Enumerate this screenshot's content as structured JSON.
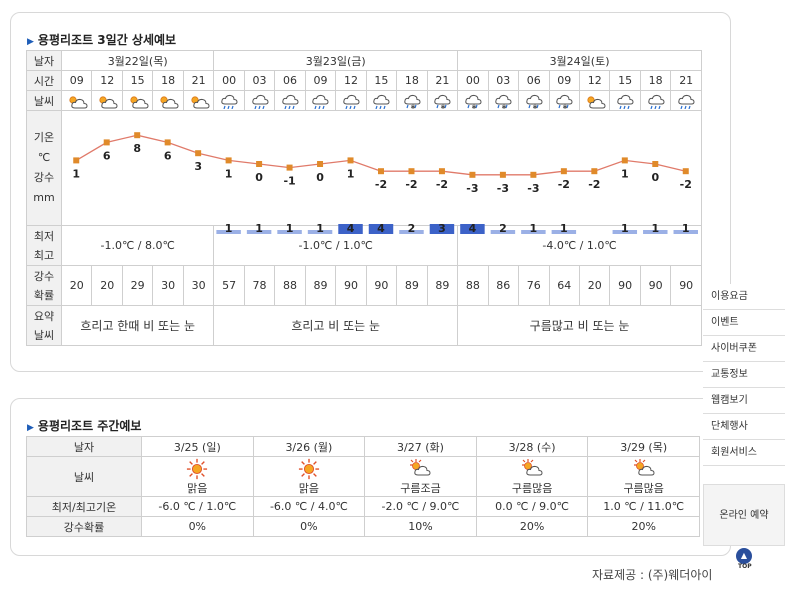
{
  "detail": {
    "title": "용평리조트 3일간 상세예보",
    "row_labels": {
      "date": "날자",
      "time": "시간",
      "weather": "날씨",
      "temp1": "기온",
      "temp2": "℃",
      "rain1": "강수",
      "rain2": "mm",
      "minmax1": "최저",
      "minmax2": "최고",
      "prob1": "강수",
      "prob2": "확률",
      "sum1": "요약",
      "sum2": "날씨"
    },
    "days": [
      {
        "date": "3월22일(목)",
        "minmax": "-1.0℃ / 8.0℃",
        "summary": "흐리고 한때 비 또는 눈"
      },
      {
        "date": "3월23일(금)",
        "minmax": "-1.0℃ / 1.0℃",
        "summary": "흐리고 비 또는 눈"
      },
      {
        "date": "3월24일(토)",
        "minmax": "-4.0℃ / 1.0℃",
        "summary": "구름많고 비 또는 눈"
      }
    ],
    "times": [
      "09",
      "12",
      "15",
      "18",
      "21",
      "00",
      "03",
      "06",
      "09",
      "12",
      "15",
      "18",
      "21",
      "00",
      "03",
      "06",
      "09",
      "12",
      "15",
      "18",
      "21"
    ],
    "weather_icons": [
      "partly-cloudy-icon",
      "partly-cloudy-icon",
      "partly-cloudy-icon",
      "partly-cloudy-icon",
      "partly-cloudy-icon",
      "rain-icon",
      "rain-icon",
      "rain-icon",
      "rain-icon",
      "rain-icon",
      "rain-icon",
      "snow-rain-icon",
      "snow-rain-icon",
      "snow-rain-icon",
      "snow-rain-icon",
      "snow-rain-icon",
      "snow-rain-icon",
      "partly-cloudy-icon",
      "rain-icon",
      "rain-icon",
      "rain-icon"
    ],
    "precip_prob": [
      "20",
      "20",
      "29",
      "30",
      "30",
      "57",
      "78",
      "88",
      "89",
      "90",
      "90",
      "89",
      "89",
      "88",
      "86",
      "76",
      "64",
      "20",
      "90",
      "90",
      "90"
    ]
  },
  "chart_data": {
    "type": "line",
    "x": [
      "09",
      "12",
      "15",
      "18",
      "21",
      "00",
      "03",
      "06",
      "09",
      "12",
      "15",
      "18",
      "21",
      "00",
      "03",
      "06",
      "09",
      "12",
      "15",
      "18",
      "21"
    ],
    "series": [
      {
        "values": [
          1,
          6,
          8,
          6,
          3,
          1,
          0,
          -1,
          0,
          1,
          -2,
          -2,
          -2,
          -3,
          -3,
          -3,
          -2,
          -2,
          1,
          0,
          -2
        ]
      }
    ],
    "precip_mm": [
      null,
      null,
      null,
      null,
      null,
      1,
      1,
      1,
      1,
      4,
      4,
      2,
      3,
      4,
      2,
      1,
      1,
      null,
      1,
      1,
      1
    ],
    "temp_labels": [
      "1",
      "6",
      "8",
      "6",
      "3",
      "1",
      "0",
      "-1",
      "0",
      "1",
      "-2",
      "-2",
      "-2",
      "-3",
      "-3",
      "-3",
      "-2",
      "-2",
      "1",
      "0",
      "-2"
    ],
    "line_color": "#e07a6a",
    "marker_color": "#e08a2a",
    "bar_color_strong": "#3c62c8",
    "bar_color_light": "#9bb0e6"
  },
  "weekly": {
    "title": "용평리조트 주간예보",
    "labels": {
      "date": "날자",
      "weather": "날씨",
      "minmax": "최저/최고기온",
      "prob": "강수확률"
    },
    "days": [
      {
        "date": "3/25 (일)",
        "icon": "sun-icon",
        "weather": "맑음",
        "minmax": "-6.0 ℃ / 1.0℃",
        "prob": "0%"
      },
      {
        "date": "3/26 (월)",
        "icon": "sun-icon",
        "weather": "맑음",
        "minmax": "-6.0 ℃ / 4.0℃",
        "prob": "0%"
      },
      {
        "date": "3/27 (화)",
        "icon": "sun-cloud-icon",
        "weather": "구름조금",
        "minmax": "-2.0 ℃ / 9.0℃",
        "prob": "10%"
      },
      {
        "date": "3/28 (수)",
        "icon": "sun-cloud-icon",
        "weather": "구름많음",
        "minmax": "0.0 ℃ / 9.0℃",
        "prob": "20%"
      },
      {
        "date": "3/29 (목)",
        "icon": "sun-cloud-icon",
        "weather": "구름많음",
        "minmax": "1.0 ℃ / 11.0℃",
        "prob": "20%"
      }
    ]
  },
  "sidebar": {
    "items": [
      "이용요금",
      "이벤트",
      "사이버쿠폰",
      "교통정보",
      "웹캠보기",
      "단체행사",
      "회원서비스"
    ],
    "reserve": "온라인 예약",
    "top": "TOP"
  },
  "credit": "자료제공 : (주)웨더아이"
}
